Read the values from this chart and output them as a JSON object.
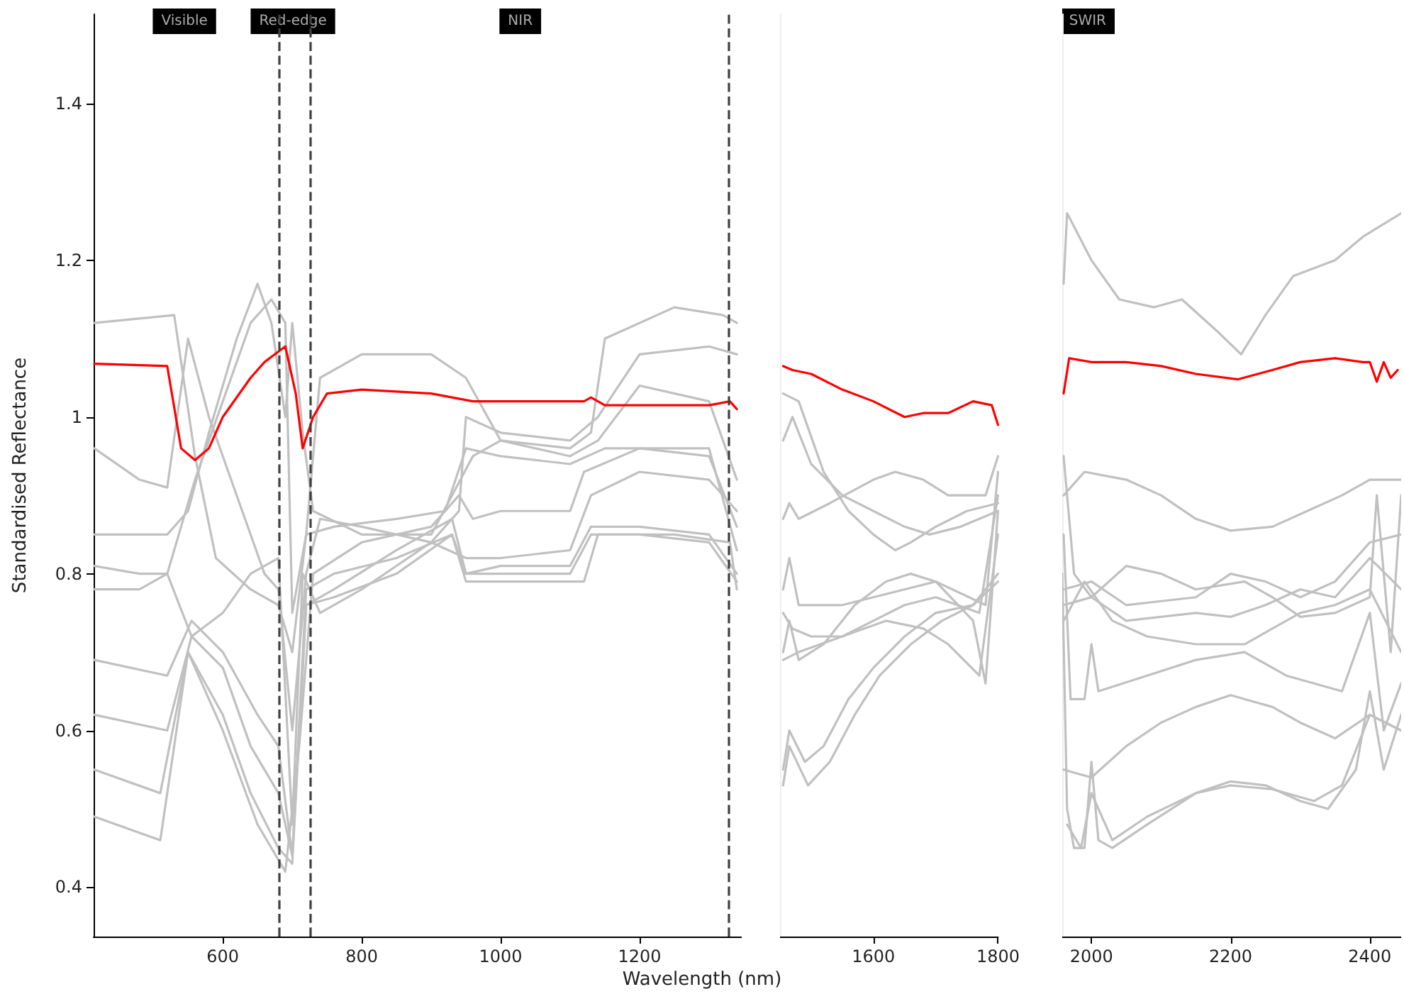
{
  "chart_data": [
    {
      "type": "line",
      "xlabel": "Wavelength (nm)",
      "ylabel": "Standardised Reflectance",
      "xlim": [
        414,
        1347
      ],
      "xticks": [
        600,
        800,
        1000,
        1200
      ],
      "ylim": [
        0.337,
        1.514
      ],
      "yticks": [
        0.4,
        0.6,
        0.8,
        1.0,
        1.2,
        1.4
      ],
      "grid": false,
      "ref_lines": [
        {
          "axis": "x",
          "value": 680,
          "color": "#404040",
          "line_style": "dashed"
        },
        {
          "axis": "x",
          "value": 725,
          "color": "#404040",
          "line_style": "dashed"
        },
        {
          "axis": "x",
          "value": 1328,
          "color": "#404040",
          "line_style": "dashed"
        }
      ],
      "annotations": [
        "Visible",
        "Red-edge",
        "NIR"
      ],
      "series": [
        {
          "color": "#c0c0c0",
          "x": [
            415,
            530,
            560,
            590,
            640,
            680,
            700,
            720,
            740,
            800,
            900,
            950,
            1000,
            1100,
            1130,
            1150,
            1250,
            1320,
            1340
          ],
          "values": [
            1.12,
            1.13,
            0.95,
            0.82,
            0.78,
            0.76,
            0.7,
            0.85,
            1.05,
            1.08,
            1.08,
            1.05,
            0.97,
            0.96,
            0.98,
            1.1,
            1.14,
            1.13,
            1.12
          ]
        },
        {
          "color": "#c0c0c0",
          "x": [
            415,
            480,
            520,
            550,
            580,
            620,
            660,
            680,
            700,
            720,
            740,
            800,
            900,
            950,
            1000,
            1100,
            1130,
            1200,
            1300,
            1340
          ],
          "values": [
            0.96,
            0.92,
            0.91,
            1.1,
            1.0,
            0.9,
            0.8,
            0.78,
            0.6,
            0.8,
            0.87,
            0.86,
            0.84,
            0.82,
            0.82,
            0.83,
            0.9,
            0.93,
            0.92,
            0.88
          ]
        },
        {
          "color": "#c0c0c0",
          "x": [
            415,
            520,
            550,
            580,
            620,
            650,
            670,
            690,
            700,
            715,
            730,
            800,
            900,
            960,
            1000,
            1100,
            1140,
            1200,
            1300,
            1340
          ],
          "values": [
            0.85,
            0.85,
            0.88,
            0.98,
            1.1,
            1.17,
            1.12,
            1.0,
            1.12,
            0.98,
            0.88,
            0.85,
            0.85,
            0.95,
            0.97,
            0.95,
            0.97,
            1.04,
            1.02,
            0.92
          ]
        },
        {
          "color": "#c0c0c0",
          "x": [
            415,
            480,
            520,
            555,
            600,
            640,
            680,
            700,
            715,
            740,
            800,
            900,
            940,
            950,
            1000,
            1100,
            1140,
            1200,
            1300,
            1340
          ],
          "values": [
            0.81,
            0.8,
            0.8,
            0.72,
            0.75,
            0.8,
            0.82,
            0.48,
            0.8,
            0.75,
            0.78,
            0.84,
            0.88,
            1.0,
            0.98,
            0.97,
            1.0,
            1.08,
            1.09,
            1.08
          ]
        },
        {
          "color": "#c0c0c0",
          "x": [
            415,
            480,
            520,
            560,
            600,
            640,
            670,
            690,
            700,
            720,
            760,
            850,
            920,
            950,
            1000,
            1100,
            1150,
            1300,
            1340
          ],
          "values": [
            0.78,
            0.78,
            0.8,
            0.92,
            1.02,
            1.12,
            1.15,
            1.12,
            0.75,
            0.85,
            0.86,
            0.87,
            0.88,
            0.96,
            0.95,
            0.94,
            0.96,
            0.96,
            0.83
          ]
        },
        {
          "color": "#c0c0c0",
          "x": [
            415,
            520,
            555,
            600,
            650,
            680,
            700,
            720,
            760,
            850,
            930,
            950,
            1000,
            1100,
            1130,
            1200,
            1300,
            1340
          ],
          "values": [
            0.69,
            0.67,
            0.74,
            0.7,
            0.62,
            0.58,
            0.44,
            0.78,
            0.8,
            0.82,
            0.85,
            0.8,
            0.8,
            0.8,
            0.85,
            0.85,
            0.84,
            0.79
          ]
        },
        {
          "color": "#c0c0c0",
          "x": [
            415,
            520,
            555,
            600,
            640,
            680,
            700,
            720,
            760,
            850,
            930,
            950,
            1000,
            1100,
            1130,
            1200,
            1300,
            1340
          ],
          "values": [
            0.62,
            0.6,
            0.72,
            0.68,
            0.58,
            0.52,
            0.44,
            0.76,
            0.78,
            0.83,
            0.87,
            0.8,
            0.81,
            0.81,
            0.86,
            0.86,
            0.85,
            0.8
          ]
        },
        {
          "color": "#c0c0c0",
          "x": [
            415,
            510,
            550,
            600,
            640,
            680,
            700,
            720,
            760,
            850,
            930,
            950,
            1000,
            1120,
            1140,
            1250,
            1330,
            1340
          ],
          "values": [
            0.55,
            0.52,
            0.7,
            0.62,
            0.52,
            0.45,
            0.43,
            0.76,
            0.77,
            0.8,
            0.85,
            0.79,
            0.79,
            0.79,
            0.85,
            0.85,
            0.84,
            0.78
          ]
        },
        {
          "color": "#c0c0c0",
          "x": [
            415,
            510,
            550,
            600,
            650,
            690,
            710,
            730,
            800,
            900,
            940,
            960,
            1000,
            1100,
            1120,
            1200,
            1300,
            1340
          ],
          "values": [
            0.49,
            0.46,
            0.7,
            0.6,
            0.48,
            0.42,
            0.58,
            0.8,
            0.84,
            0.86,
            0.9,
            0.87,
            0.88,
            0.88,
            0.93,
            0.96,
            0.95,
            0.86
          ]
        },
        {
          "color": "#ff0000",
          "x": [
            415,
            520,
            540,
            560,
            580,
            600,
            640,
            660,
            690,
            705,
            715,
            730,
            750,
            800,
            900,
            930,
            960,
            1000,
            1120,
            1130,
            1150,
            1300,
            1330,
            1340
          ],
          "values": [
            1.068,
            1.065,
            0.96,
            0.945,
            0.96,
            1.0,
            1.05,
            1.07,
            1.09,
            1.03,
            0.96,
            1.0,
            1.03,
            1.035,
            1.03,
            1.025,
            1.02,
            1.02,
            1.02,
            1.025,
            1.015,
            1.015,
            1.02,
            1.01
          ]
        }
      ]
    },
    {
      "type": "line",
      "xlim": [
        1450,
        1800
      ],
      "xticks": [
        1600,
        1800
      ],
      "ylim": [
        0.337,
        1.514
      ],
      "tick_labels": "x",
      "grid": false,
      "series": [
        {
          "color": "#c0c0c0",
          "x": [
            1455,
            1480,
            1520,
            1560,
            1600,
            1635,
            1660,
            1700,
            1750,
            1800
          ],
          "values": [
            1.03,
            1.02,
            0.93,
            0.88,
            0.85,
            0.83,
            0.84,
            0.86,
            0.88,
            0.89
          ]
        },
        {
          "color": "#c0c0c0",
          "x": [
            1455,
            1470,
            1500,
            1550,
            1600,
            1650,
            1690,
            1740,
            1800
          ],
          "values": [
            0.97,
            1.0,
            0.94,
            0.9,
            0.88,
            0.86,
            0.85,
            0.86,
            0.88
          ]
        },
        {
          "color": "#c0c0c0",
          "x": [
            1455,
            1465,
            1480,
            1530,
            1600,
            1635,
            1680,
            1720,
            1780,
            1800
          ],
          "values": [
            0.87,
            0.89,
            0.87,
            0.89,
            0.92,
            0.93,
            0.92,
            0.9,
            0.9,
            0.95
          ]
        },
        {
          "color": "#c0c0c0",
          "x": [
            1455,
            1465,
            1480,
            1550,
            1600,
            1650,
            1700,
            1780,
            1800
          ],
          "values": [
            0.78,
            0.82,
            0.76,
            0.76,
            0.77,
            0.78,
            0.79,
            0.76,
            0.93
          ]
        },
        {
          "color": "#c0c0c0",
          "x": [
            1455,
            1470,
            1500,
            1550,
            1600,
            1650,
            1700,
            1770,
            1800
          ],
          "values": [
            0.75,
            0.73,
            0.72,
            0.72,
            0.74,
            0.76,
            0.77,
            0.75,
            0.9
          ]
        },
        {
          "color": "#c0c0c0",
          "x": [
            1455,
            1465,
            1480,
            1520,
            1570,
            1620,
            1660,
            1700,
            1760,
            1780,
            1800
          ],
          "values": [
            0.7,
            0.74,
            0.69,
            0.71,
            0.76,
            0.79,
            0.8,
            0.79,
            0.74,
            0.66,
            0.88
          ]
        },
        {
          "color": "#c0c0c0",
          "x": [
            1455,
            1480,
            1550,
            1620,
            1680,
            1720,
            1770,
            1800
          ],
          "values": [
            0.69,
            0.7,
            0.72,
            0.74,
            0.73,
            0.71,
            0.67,
            0.85
          ]
        },
        {
          "color": "#c0c0c0",
          "x": [
            1455,
            1465,
            1490,
            1520,
            1560,
            1600,
            1650,
            1700,
            1760,
            1800
          ],
          "values": [
            0.55,
            0.6,
            0.56,
            0.58,
            0.64,
            0.68,
            0.72,
            0.75,
            0.76,
            0.8
          ]
        },
        {
          "color": "#c0c0c0",
          "x": [
            1455,
            1465,
            1495,
            1530,
            1570,
            1610,
            1660,
            1710,
            1760,
            1800
          ],
          "values": [
            0.53,
            0.58,
            0.53,
            0.56,
            0.62,
            0.67,
            0.71,
            0.74,
            0.76,
            0.79
          ]
        },
        {
          "color": "#ff0000",
          "x": [
            1455,
            1470,
            1500,
            1550,
            1600,
            1650,
            1680,
            1720,
            1760,
            1790,
            1800
          ],
          "values": [
            1.065,
            1.06,
            1.055,
            1.035,
            1.02,
            1.0,
            1.005,
            1.005,
            1.02,
            1.015,
            0.99
          ]
        }
      ]
    },
    {
      "type": "line",
      "xlim": [
        1958,
        2445
      ],
      "xticks": [
        2000,
        2200,
        2400
      ],
      "ylim": [
        0.337,
        1.514
      ],
      "tick_labels": "x",
      "grid": false,
      "annotations": [
        "SWIR"
      ],
      "series": [
        {
          "color": "#c0c0c0",
          "x": [
            1960,
            1965,
            2000,
            2040,
            2090,
            2130,
            2180,
            2215,
            2250,
            2290,
            2350,
            2390,
            2445
          ],
          "values": [
            1.17,
            1.26,
            1.2,
            1.15,
            1.14,
            1.15,
            1.11,
            1.08,
            1.13,
            1.18,
            1.2,
            1.23,
            1.26
          ]
        },
        {
          "color": "#c0c0c0",
          "x": [
            1960,
            1990,
            2050,
            2100,
            2150,
            2200,
            2260,
            2310,
            2360,
            2400,
            2445
          ],
          "values": [
            0.9,
            0.93,
            0.92,
            0.9,
            0.87,
            0.855,
            0.86,
            0.88,
            0.9,
            0.92,
            0.92
          ]
        },
        {
          "color": "#c0c0c0",
          "x": [
            1960,
            1975,
            2000,
            2050,
            2100,
            2150,
            2220,
            2260,
            2300,
            2350,
            2400,
            2410,
            2430,
            2445
          ],
          "values": [
            0.95,
            0.8,
            0.77,
            0.81,
            0.8,
            0.78,
            0.79,
            0.77,
            0.745,
            0.75,
            0.77,
            0.9,
            0.7,
            0.9
          ]
        },
        {
          "color": "#c0c0c0",
          "x": [
            1960,
            2000,
            2050,
            2100,
            2150,
            2200,
            2250,
            2300,
            2350,
            2400,
            2445
          ],
          "values": [
            0.78,
            0.79,
            0.76,
            0.765,
            0.77,
            0.8,
            0.79,
            0.77,
            0.79,
            0.84,
            0.85
          ]
        },
        {
          "color": "#c0c0c0",
          "x": [
            1960,
            2000,
            2050,
            2100,
            2150,
            2200,
            2250,
            2300,
            2350,
            2400,
            2445
          ],
          "values": [
            0.76,
            0.77,
            0.74,
            0.745,
            0.75,
            0.745,
            0.76,
            0.78,
            0.77,
            0.82,
            0.78
          ]
        },
        {
          "color": "#c0c0c0",
          "x": [
            1960,
            1990,
            2030,
            2080,
            2150,
            2220,
            2260,
            2300,
            2350,
            2400,
            2445
          ],
          "values": [
            0.74,
            0.79,
            0.74,
            0.72,
            0.71,
            0.71,
            0.73,
            0.75,
            0.76,
            0.78,
            0.7
          ]
        },
        {
          "color": "#c0c0c0",
          "x": [
            1960,
            1970,
            1990,
            2000,
            2010,
            2080,
            2150,
            2220,
            2280,
            2320,
            2360,
            2400,
            2420,
            2445
          ],
          "values": [
            0.85,
            0.64,
            0.64,
            0.71,
            0.65,
            0.67,
            0.69,
            0.7,
            0.67,
            0.66,
            0.65,
            0.75,
            0.6,
            0.66
          ]
        },
        {
          "color": "#c0c0c0",
          "x": [
            1960,
            2000,
            2050,
            2100,
            2150,
            2200,
            2260,
            2300,
            2350,
            2400,
            2445
          ],
          "values": [
            0.55,
            0.54,
            0.58,
            0.61,
            0.63,
            0.645,
            0.63,
            0.61,
            0.59,
            0.62,
            0.6
          ]
        },
        {
          "color": "#c0c0c0",
          "x": [
            1958,
            1965,
            1975,
            1990,
            2000,
            2010,
            2030,
            2080,
            2150,
            2200,
            2250,
            2300,
            2340,
            2380,
            2400,
            2420,
            2445
          ],
          "values": [
            0.8,
            0.5,
            0.45,
            0.45,
            0.56,
            0.46,
            0.45,
            0.48,
            0.52,
            0.535,
            0.53,
            0.51,
            0.5,
            0.55,
            0.65,
            0.55,
            0.62
          ]
        },
        {
          "color": "#c0c0c0",
          "x": [
            1965,
            1985,
            2000,
            2030,
            2080,
            2150,
            2200,
            2260,
            2320,
            2360,
            2400,
            2445
          ],
          "values": [
            0.48,
            0.45,
            0.52,
            0.46,
            0.49,
            0.52,
            0.53,
            0.525,
            0.51,
            0.53,
            0.62,
            0.6
          ]
        },
        {
          "color": "#ff0000",
          "x": [
            1960,
            1968,
            2000,
            2050,
            2100,
            2150,
            2210,
            2260,
            2300,
            2350,
            2390,
            2400,
            2410,
            2420,
            2430,
            2440
          ],
          "values": [
            1.03,
            1.075,
            1.07,
            1.07,
            1.065,
            1.055,
            1.048,
            1.06,
            1.07,
            1.075,
            1.07,
            1.07,
            1.045,
            1.07,
            1.05,
            1.06
          ]
        }
      ]
    }
  ]
}
